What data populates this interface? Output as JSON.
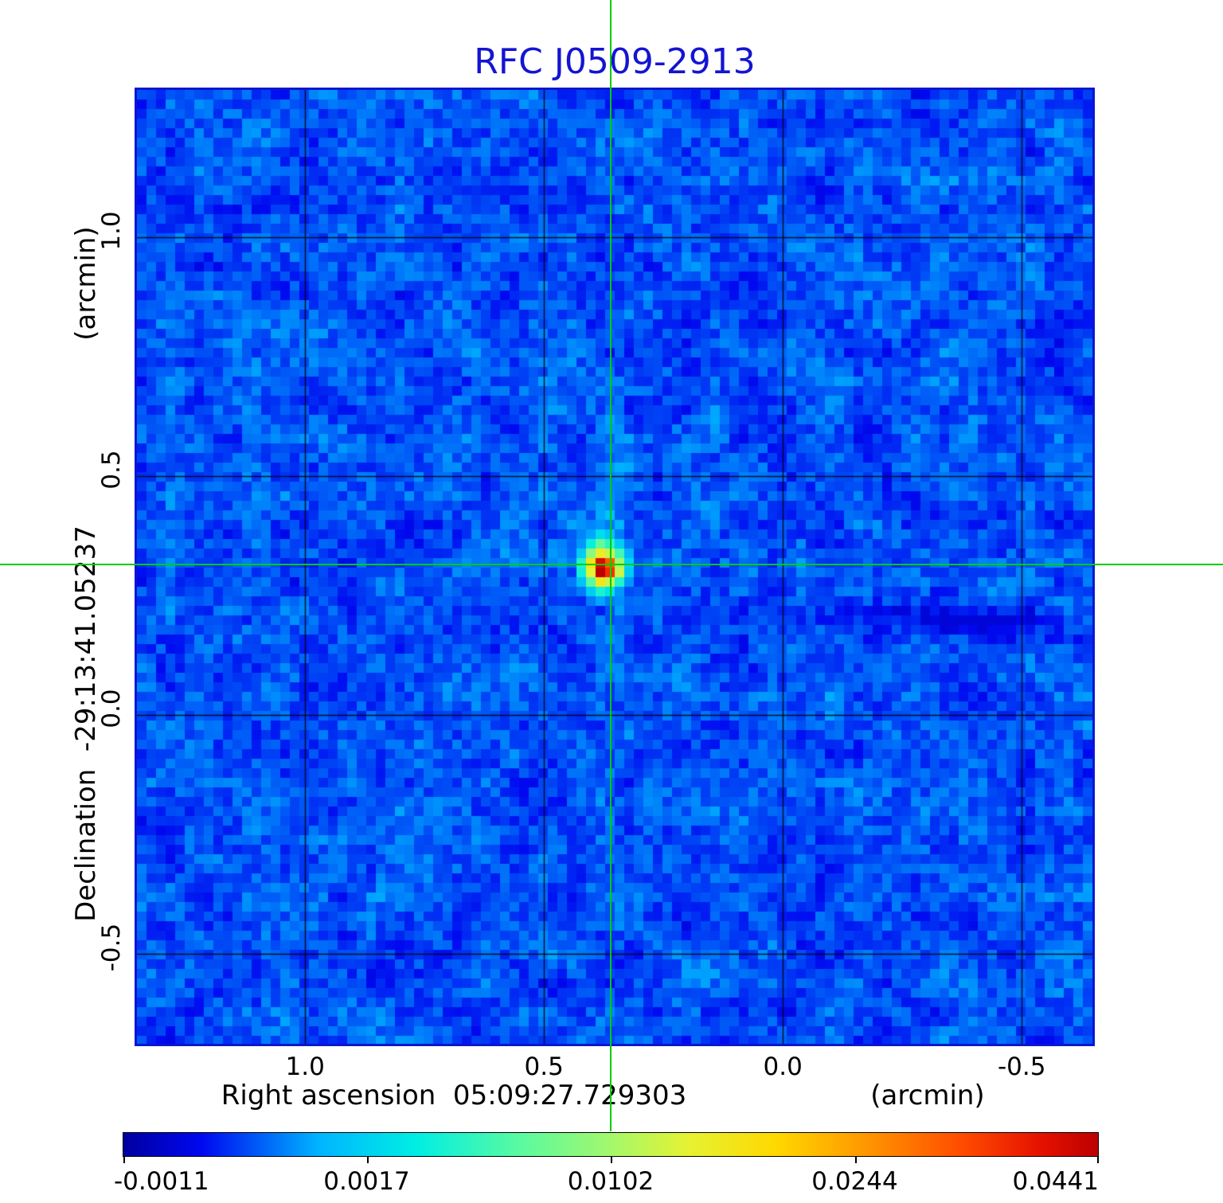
{
  "chart_data": {
    "type": "heatmap",
    "title": "RFC J0509-2913",
    "title_color": "#1414d2",
    "xlabel": "Right ascension  05:09:27.729303",
    "xunit": "(arcmin)",
    "ylabel": "Declination  -29:13:41.05237",
    "yunit": "(arcmin)",
    "x_ticks": {
      "values": [
        1.0,
        0.5,
        0.0,
        -0.5
      ],
      "labels": [
        "1.0",
        "0.5",
        "0.0",
        "-0.5"
      ]
    },
    "y_ticks": {
      "values": [
        1.0,
        0.5,
        0.0,
        -0.5
      ],
      "labels": [
        "1.0",
        "0.5",
        "0.0",
        "-0.5"
      ]
    },
    "x_range_arcmin": [
      1.352,
      -0.648
    ],
    "y_range_arcmin": [
      1.308,
      -0.688
    ],
    "grid": true,
    "grid_color": "#05051e",
    "crosshair": {
      "x_arcmin": 0.36,
      "y_arcmin": 0.315,
      "color": "#00cc00"
    },
    "source": {
      "name": "RFC J0509-2913",
      "peak_x_arcmin": 0.36,
      "peak_y_arcmin": 0.315,
      "peak_value": 0.0441,
      "profile": [
        [
          0.13,
          0.13,
          0.15,
          0.18,
          0.16,
          0.13,
          0.13,
          0.13,
          0.13
        ],
        [
          0.13,
          0.15,
          0.19,
          0.27,
          0.23,
          0.16,
          0.13,
          0.13,
          0.13
        ],
        [
          0.14,
          0.18,
          0.31,
          0.42,
          0.35,
          0.24,
          0.16,
          0.13,
          0.13
        ],
        [
          0.15,
          0.24,
          0.47,
          0.6,
          0.54,
          0.38,
          0.2,
          0.14,
          0.13
        ],
        [
          0.16,
          0.34,
          0.63,
          0.96,
          0.84,
          0.5,
          0.26,
          0.15,
          0.13
        ],
        [
          0.15,
          0.32,
          0.58,
          1.0,
          0.9,
          0.55,
          0.24,
          0.14,
          0.13
        ],
        [
          0.14,
          0.22,
          0.41,
          0.62,
          0.54,
          0.34,
          0.18,
          0.13,
          0.13
        ],
        [
          0.13,
          0.16,
          0.24,
          0.33,
          0.28,
          0.18,
          0.14,
          0.13,
          0.13
        ],
        [
          0.13,
          0.13,
          0.16,
          0.19,
          0.16,
          0.13,
          0.13,
          0.13,
          0.13
        ]
      ]
    },
    "background": {
      "description": "blocky blue interferometric noise field",
      "value_min": -0.0011,
      "value_max": 0.0441,
      "scale": "nonlinear stretch"
    },
    "artifacts": {
      "vertical_plume_above_source": true,
      "vertical_plume_below_source": true,
      "horizontal_streak_through_source": true,
      "dark_streak": {
        "x_arcmin": -0.403,
        "y_arcmin": 0.202
      }
    },
    "colorbar": {
      "tick_labels": [
        "-0.0011",
        "0.0017",
        "0.0102",
        "0.0244",
        "0.0441"
      ],
      "tick_values": [
        -0.0011,
        0.0017,
        0.0102,
        0.0244,
        0.0441
      ],
      "tick_positions": [
        0,
        0.25,
        0.5,
        0.75,
        1
      ],
      "colormap_stops": [
        [
          0.0,
          "#0000a0"
        ],
        [
          0.08,
          "#0008f0"
        ],
        [
          0.2,
          "#00b4ff"
        ],
        [
          0.3,
          "#00eee4"
        ],
        [
          0.4,
          "#54faa4"
        ],
        [
          0.5,
          "#a4f86c"
        ],
        [
          0.58,
          "#e6f232"
        ],
        [
          0.67,
          "#ffd800"
        ],
        [
          0.76,
          "#ff9800"
        ],
        [
          0.86,
          "#ff4c00"
        ],
        [
          0.94,
          "#e61200"
        ],
        [
          1.0,
          "#bc0000"
        ]
      ]
    }
  }
}
